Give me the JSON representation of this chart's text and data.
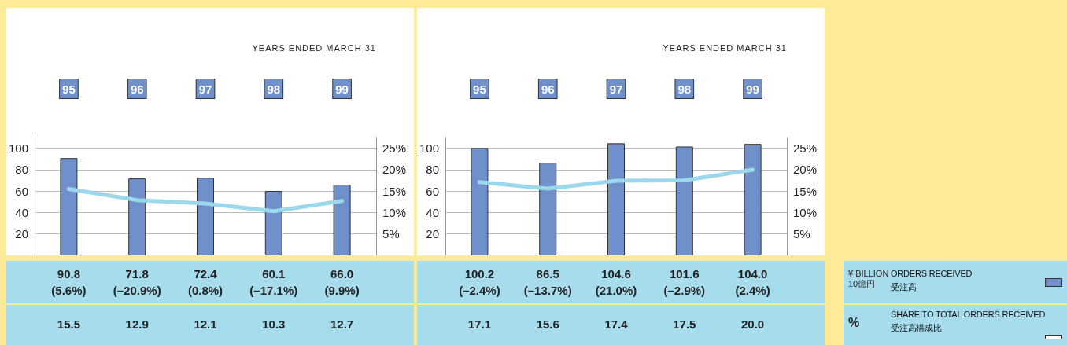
{
  "chart_data": [
    {
      "type": "bar",
      "xlabel": "YEARS ENDED MARCH 31",
      "annotations": [
        "¥ BILLION\n10億円",
        "%"
      ],
      "categories": [
        "95",
        "96",
        "97",
        "98",
        "99"
      ],
      "series": [
        {
          "name": "ORDERS RECEIVED\n受注高",
          "color": "#7090cc",
          "values": [
            90.8,
            71.8,
            72.4,
            60.1,
            66.0
          ],
          "value_labels": [
            "90.8\n(5.6%)",
            "71.8\n(–20.9%)",
            "72.4\n(0.8%)",
            "60.1\n(–17.1%)",
            "66.0\n(9.9%)"
          ]
        },
        {
          "name": "SHARE TO TOTAL ORDERS RECEIVED\n受注高構成比",
          "type": "line",
          "axis": "y2",
          "color": "#9ad8ea",
          "values": [
            15.5,
            12.9,
            12.1,
            10.3,
            12.7
          ],
          "value_labels": [
            "15.5",
            "12.9",
            "12.1",
            "10.3",
            "12.7"
          ]
        }
      ],
      "ylim": [
        0,
        110
      ],
      "yticks": [
        20,
        40,
        60,
        80,
        100
      ],
      "y2lim": [
        0,
        27.5
      ],
      "y2ticks": [
        {
          "value": 5,
          "label": "5%"
        },
        {
          "value": 10,
          "label": "10%"
        },
        {
          "value": 15,
          "label": "15%"
        },
        {
          "value": 20,
          "label": "20%"
        },
        {
          "value": 25,
          "label": "25%"
        }
      ],
      "grid": "y",
      "legend": "right",
      "marker": "none",
      "line_style": "solid"
    },
    {
      "type": "bar",
      "xlabel": "YEARS ENDED MARCH 31",
      "categories": [
        "95",
        "96",
        "97",
        "98",
        "99"
      ],
      "series": [
        {
          "color": "#7090cc",
          "values": [
            100.2,
            86.5,
            104.6,
            101.6,
            104.0
          ],
          "value_labels": [
            "100.2\n(–2.4%)",
            "86.5\n(–13.7%)",
            "104.6\n(21.0%)",
            "101.6\n(–2.9%)",
            "104.0\n(2.4%)"
          ]
        },
        {
          "type": "line",
          "axis": "y2",
          "color": "#9ad8ea",
          "values": [
            17.1,
            15.6,
            17.4,
            17.5,
            20.0
          ],
          "value_labels": [
            "17.1",
            "15.6",
            "17.4",
            "17.5",
            "20.0"
          ]
        }
      ],
      "ylim": [
        0,
        110
      ],
      "yticks": [
        20,
        40,
        60,
        80,
        100
      ],
      "y2lim": [
        0,
        27.5
      ],
      "y2ticks": [
        {
          "value": 5,
          "label": "5%"
        },
        {
          "value": 10,
          "label": "10%"
        },
        {
          "value": 15,
          "label": "15%"
        },
        {
          "value": 20,
          "label": "20%"
        },
        {
          "value": 25,
          "label": "25%"
        }
      ],
      "grid": "y",
      "marker": "none",
      "line_style": "solid"
    }
  ]
}
